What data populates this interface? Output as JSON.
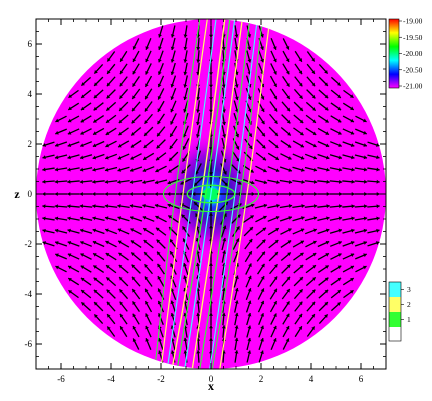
{
  "chart_data": {
    "type": "heatmap",
    "title": "",
    "xlabel": "x",
    "ylabel": "z",
    "xlim": [
      -7,
      7
    ],
    "ylim": [
      -7,
      7
    ],
    "x_ticks": [
      "-6",
      "-4",
      "-2",
      "0",
      "2",
      "4",
      "6"
    ],
    "y_ticks": [
      "6",
      "4",
      "2",
      "0",
      "-2",
      "-4",
      "-6"
    ],
    "domain": "circular disk of radius 7 centered at (0, 0)",
    "background_value": -21.0,
    "colorbar_main": {
      "position": "right-top",
      "ticks": [
        "-19.00",
        "-19.50",
        "-20.00",
        "-20.50",
        "-21.00"
      ],
      "colors": [
        "#ff0000",
        "#ffff00",
        "#00ff00",
        "#00ffff",
        "#0000ff",
        "#ff00ff"
      ]
    },
    "colorbar_lines": {
      "position": "right-bottom",
      "ticks": [
        "3",
        "2",
        "1"
      ],
      "colors": [
        "#44ffff",
        "#ffff66",
        "#33ff33"
      ]
    },
    "field": "vector arrows on a regular grid, flowing toward the origin along the z axis and away from it along the x axis (quadrupolar saddle)",
    "contour_lines": [
      {
        "level": "1",
        "color": "#33ff33",
        "shape": "equatorial ring and near-vertical lines through the center, tilted"
      },
      {
        "level": "2",
        "color": "#ffff66",
        "shape": "near-vertical tilted lines along the z axis"
      },
      {
        "level": "3",
        "color": "#44ffff",
        "shape": "near-vertical tilted lines along the z axis"
      }
    ],
    "colors": {
      "disk": "#ff00ff",
      "arrow": "#000000",
      "core_dark": "#3b0aa8",
      "core_bright": "#00ff60"
    }
  }
}
